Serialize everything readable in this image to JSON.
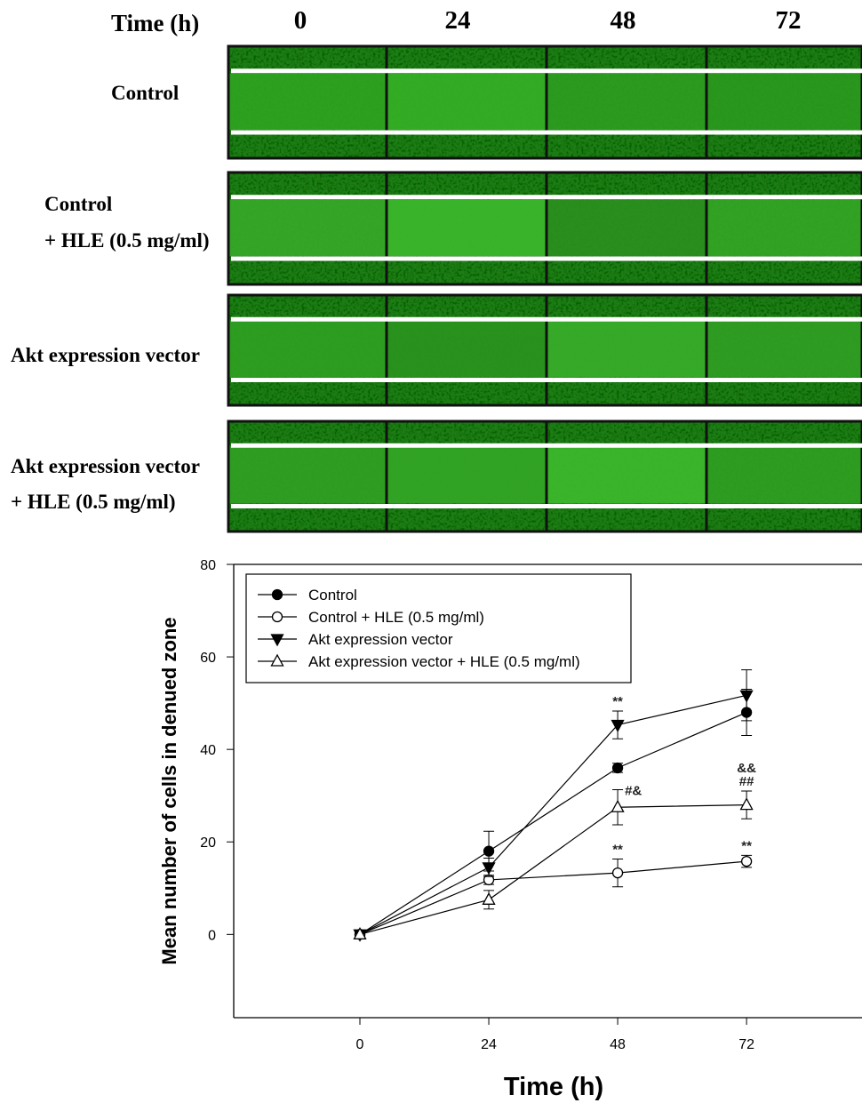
{
  "panel": {
    "header": "Time (h)",
    "columns": [
      "0",
      "24",
      "48",
      "72"
    ],
    "rows": [
      [
        "Control"
      ],
      [
        "Control",
        "+ HLE (0.5 mg/ml)"
      ],
      [
        "Akt expression vector"
      ],
      [
        "Akt expression vector",
        "+ HLE (0.5 mg/ml)"
      ]
    ]
  },
  "chart_data": {
    "type": "line",
    "xlabel": "Time (h)",
    "ylabel": "Mean number of cells in denued zone",
    "x": [
      0,
      24,
      48,
      72
    ],
    "xlim": [
      -23.5,
      93
    ],
    "xticks": [
      0,
      24,
      48,
      72
    ],
    "ylim": [
      -18,
      80
    ],
    "yticks": [
      0,
      20,
      40,
      60,
      80
    ],
    "legend": "upper left",
    "series": [
      {
        "name": "Control",
        "color": "#000000",
        "marker": "circle",
        "filled": true,
        "values": [
          0,
          18,
          36,
          48
        ],
        "errors": [
          0.5,
          4.3,
          1,
          5
        ],
        "point_labels": [
          null,
          null,
          null,
          null
        ]
      },
      {
        "name": "Control + HLE (0.5 mg/ml)",
        "color": "#000000",
        "marker": "circle",
        "filled": false,
        "values": [
          0,
          11.8,
          13.3,
          15.8
        ],
        "errors": [
          0.5,
          1,
          3,
          1.3
        ],
        "point_labels": [
          null,
          null,
          [
            "**"
          ],
          [
            "**"
          ]
        ]
      },
      {
        "name": "Akt expression vector",
        "color": "#000000",
        "marker": "triangle-down",
        "filled": true,
        "values": [
          0,
          14.5,
          45.3,
          51.7
        ],
        "errors": [
          0.5,
          2,
          3,
          5.5
        ],
        "point_labels": [
          null,
          null,
          [
            "**"
          ],
          null
        ]
      },
      {
        "name": "Akt expression vector + HLE (0.5 mg/ml)",
        "color": "#000000",
        "marker": "triangle-up",
        "filled": false,
        "values": [
          0,
          7.5,
          27.5,
          28
        ],
        "errors": [
          0.5,
          2,
          3.8,
          3
        ],
        "point_labels": [
          null,
          null,
          [
            "#&"
          ],
          [
            "&&",
            "##"
          ]
        ]
      }
    ]
  }
}
